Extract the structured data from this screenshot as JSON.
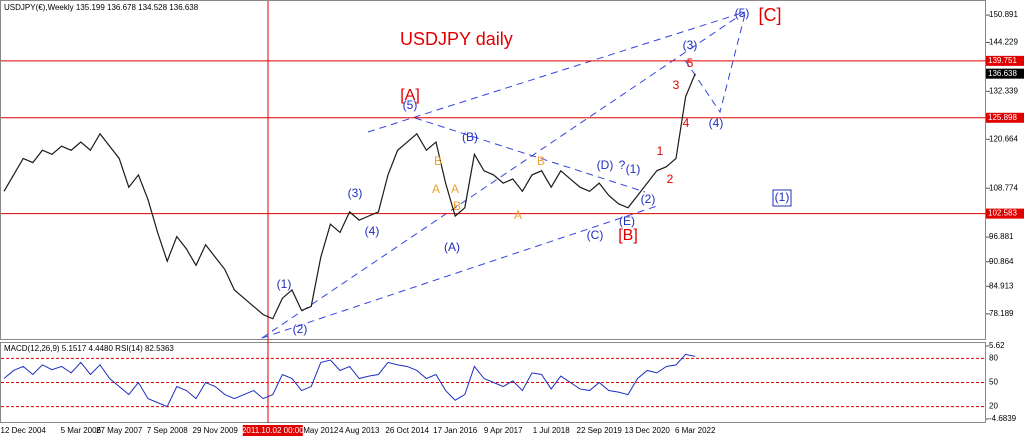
{
  "chart_data": {
    "type": "line",
    "header": "USDJPY(€),Weekly  135.199 136.678 134.528 136.638",
    "title": "USDJPY daily",
    "categories": [
      null,
      null,
      "12 Dec 2004",
      null,
      null,
      null,
      null,
      null,
      "5 Mar 2006",
      null,
      null,
      null,
      "27 May 2007",
      null,
      null,
      null,
      null,
      "7 Sep 2008",
      null,
      null,
      null,
      null,
      "29 Nov 2009",
      null,
      null,
      null,
      null,
      null,
      "2011.10.02 00:00",
      null,
      null,
      null,
      null,
      "May 2012",
      null,
      null,
      null,
      "4 Aug 2013",
      null,
      null,
      null,
      null,
      "26 Oct 2014",
      null,
      null,
      null,
      null,
      "17 Jan 2016",
      null,
      null,
      null,
      null,
      "9 Apr 2017",
      null,
      null,
      null,
      null,
      "1 Jul 2018",
      null,
      null,
      null,
      null,
      "22 Sep 2019",
      null,
      null,
      null,
      null,
      "13 Dec 2020",
      null,
      null,
      null,
      null,
      "6 Mar 2022"
    ],
    "series": [
      {
        "color": "#1a1a1a",
        "values": [
          108,
          112,
          116,
          115,
          118,
          117,
          119,
          118,
          120,
          118,
          122,
          119,
          116,
          109,
          112,
          106,
          98,
          91,
          97,
          94,
          90,
          95,
          92,
          89,
          84,
          82,
          80,
          78,
          77,
          82,
          84,
          79,
          80,
          92,
          100,
          98,
          103,
          101,
          102,
          103,
          112,
          118,
          120,
          122,
          118,
          120,
          110,
          102,
          104,
          117,
          113,
          112,
          110,
          111,
          108,
          112,
          113,
          109,
          113,
          111,
          109,
          108,
          110,
          107,
          105,
          104,
          107,
          110,
          113,
          114,
          116,
          131,
          136.638
        ]
      }
    ],
    "ylim": [
      72.07,
      154.32
    ],
    "yticks": [
      150.891,
      144.229,
      132.339,
      120.664,
      108.774,
      96.881,
      90.864,
      84.913,
      78.189
    ],
    "hlines": [
      {
        "value": 139.751,
        "color": "#e00000"
      },
      {
        "value": 125.898,
        "color": "#e00000"
      },
      {
        "value": 102.583,
        "color": "#e00000"
      }
    ],
    "last_price": 136.638,
    "annotations": [
      {
        "text": "[A]",
        "color": "#e00000"
      },
      {
        "text": "(5)",
        "color": "#1f2fbf"
      },
      {
        "text": "(3)",
        "color": "#1f2fbf"
      },
      {
        "text": "(4)",
        "color": "#1f2fbf"
      },
      {
        "text": "(1)",
        "color": "#1f2fbf"
      },
      {
        "text": "(2)",
        "color": "#1f2fbf"
      },
      {
        "text": "(B)",
        "color": "#1f2fbf"
      },
      {
        "text": "(A)",
        "color": "#1f2fbf"
      },
      {
        "text": "(C)",
        "color": "#1f2fbf"
      },
      {
        "text": "(D)",
        "color": "#1f2fbf"
      },
      {
        "text": "?",
        "color": "#1f2fbf"
      },
      {
        "text": "(E)",
        "color": "#1f2fbf"
      },
      {
        "text": "[B]",
        "color": "#e00000"
      },
      {
        "text": "(1)",
        "color": "#1f2fbf"
      },
      {
        "text": "(2)",
        "color": "#1f2fbf"
      },
      {
        "text": "1",
        "color": "#e00000"
      },
      {
        "text": "2",
        "color": "#e00000"
      },
      {
        "text": "3",
        "color": "#e00000"
      },
      {
        "text": "4",
        "color": "#e00000"
      },
      {
        "text": "5",
        "color": "#e00000"
      },
      {
        "text": "(3)",
        "color": "#1f2fbf"
      },
      {
        "text": "(4)",
        "color": "#1f2fbf"
      },
      {
        "text": "(5)",
        "color": "#1f2fbf"
      },
      {
        "text": "[C]",
        "color": "#e00000"
      },
      {
        "text": "A",
        "color": "#f0a030"
      },
      {
        "text": "B",
        "color": "#f0a030"
      },
      {
        "text": "A",
        "color": "#f0a030"
      },
      {
        "text": "B",
        "color": "#f0a030"
      },
      {
        "text": "A",
        "color": "#f0a030"
      },
      {
        "text": "B",
        "color": "#f0a030"
      },
      {
        "text": "(1)",
        "color": "#1f2fbf"
      }
    ],
    "indicator": {
      "title": "MACD(12,26,9) 5.1517 4.4480 RSI(14) 82.5363",
      "color": "#1f2fbf",
      "values": [
        55,
        65,
        70,
        60,
        72,
        66,
        70,
        62,
        75,
        60,
        72,
        55,
        45,
        35,
        50,
        30,
        25,
        20,
        45,
        40,
        30,
        50,
        45,
        35,
        30,
        35,
        40,
        30,
        35,
        60,
        55,
        40,
        45,
        75,
        78,
        65,
        70,
        55,
        58,
        60,
        75,
        72,
        70,
        65,
        55,
        60,
        40,
        28,
        35,
        70,
        55,
        50,
        45,
        52,
        40,
        62,
        60,
        42,
        58,
        50,
        42,
        40,
        50,
        40,
        38,
        35,
        55,
        65,
        62,
        70,
        72,
        85,
        82.5363
      ],
      "ylim": [
        0.85,
        99.2
      ],
      "yticks": [
        80,
        50,
        20
      ],
      "y2lim": [
        -4.6839,
        5.62
      ],
      "y2ticks": [
        5.62,
        -4.6839
      ]
    }
  }
}
